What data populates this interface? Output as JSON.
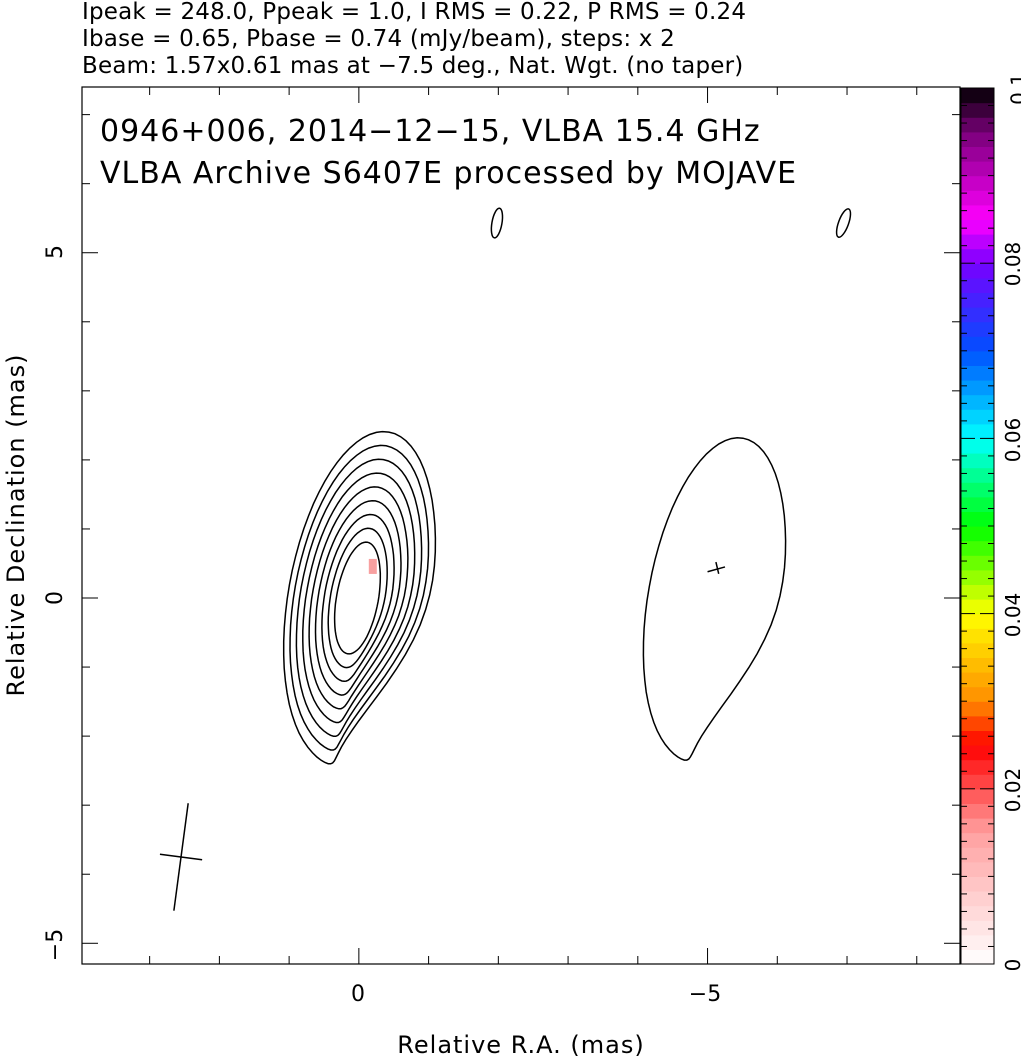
{
  "header": {
    "line1": "Ipeak = 248.0, Ppeak = 1.0, I RMS = 0.22, P RMS = 0.24",
    "line2": "Ibase = 0.65, Pbase = 0.74 (mJy/beam), steps: x 2",
    "line3": "Beam: 1.57x0.61 mas at −7.5 deg., Nat. Wgt. (no taper)"
  },
  "chart_data": {
    "type": "contour",
    "title_line1": "0946+006, 2014−12−15, VLBA 15.4 GHz",
    "title_line2": "VLBA Archive S6407E processed by MOJAVE",
    "xlabel": "Relative R.A. (mas)",
    "ylabel": "Relative Declination (mas)",
    "xlim": [
      3.97,
      -8.62
    ],
    "ylim": [
      -5.3,
      7.4
    ],
    "x_ticks": [
      0,
      -5
    ],
    "x_tick_labels": [
      "0",
      "−5"
    ],
    "y_ticks": [
      5,
      0,
      -5
    ],
    "y_tick_labels": [
      "5",
      "0",
      "−5"
    ],
    "colorbar": {
      "range": [
        0,
        0.1
      ],
      "ticks": [
        0,
        0.02,
        0.04,
        0.06,
        0.08,
        0.1
      ],
      "tick_labels": [
        "0",
        "0.02",
        "0.04",
        "0.06",
        "0.08",
        "0.1"
      ]
    },
    "contour_levels_mJy_per_beam": [
      0.65,
      1.3,
      2.6,
      5.2,
      10.4,
      20.8,
      41.6,
      83.2,
      166.4
    ],
    "polarization_pixel": {
      "x": -0.2,
      "y": 0.45,
      "value": 0.005,
      "color": "#f8a0a0"
    },
    "beam": {
      "center": [
        2.55,
        -3.75
      ],
      "major_mas": 1.57,
      "minor_mas": 0.61,
      "pa_deg": -7.5
    }
  }
}
